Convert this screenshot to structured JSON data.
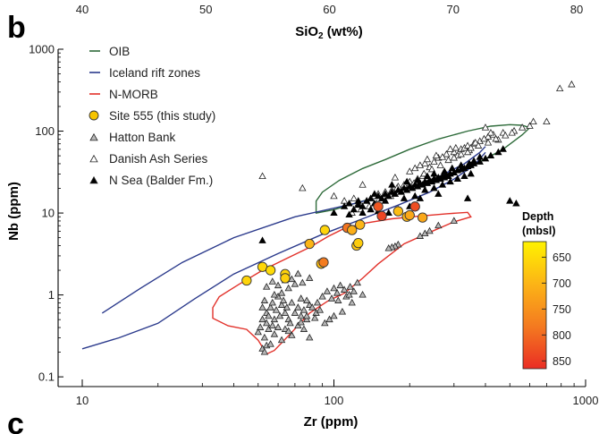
{
  "chart_data": {
    "type": "scatter",
    "panel_labels": {
      "top": "b",
      "bottom": "c"
    },
    "top_axis": {
      "label": "SiO2 (wt%)",
      "ticks": [
        40,
        50,
        60,
        70,
        80
      ],
      "range": [
        40,
        80
      ]
    },
    "x_axis": {
      "label": "Zr (ppm)",
      "scale": "log",
      "range": [
        10,
        1000
      ],
      "tick_values": [
        10,
        100,
        1000
      ],
      "tick_labels": [
        "10",
        "100",
        "1000"
      ]
    },
    "y_axis": {
      "label": "Nb (ppm)",
      "scale": "log",
      "range": [
        0.08,
        1000
      ],
      "tick_values": [
        0.1,
        1,
        10,
        100,
        1000
      ],
      "tick_labels": [
        "0.1",
        "1",
        "10",
        "100",
        "1000"
      ]
    },
    "legend": [
      {
        "key": "oib",
        "label": "OIB",
        "symbol": "line",
        "color": "#2e6b3a"
      },
      {
        "key": "iceland",
        "label": "Iceland rift zones",
        "symbol": "line",
        "color": "#2b3a8c"
      },
      {
        "key": "nmorb",
        "label": "N-MORB",
        "symbol": "line",
        "color": "#e2312a"
      },
      {
        "key": "site555",
        "label": "Site 555 (this study)",
        "symbol": "circle",
        "color": "#f6c400"
      },
      {
        "key": "hatton",
        "label": "Hatton Bank",
        "symbol": "triangle-grey",
        "color": "#b8b8b8"
      },
      {
        "key": "danish",
        "label": "Danish Ash Series",
        "symbol": "triangle-open",
        "color": "#ffffff"
      },
      {
        "key": "nsea",
        "label": "N Sea (Balder Fm.)",
        "symbol": "triangle-black",
        "color": "#000000"
      }
    ],
    "colorbar": {
      "title_line1": "Depth",
      "title_line2": "(mbsl)",
      "ticks": [
        650,
        700,
        750,
        800,
        850
      ],
      "range": [
        620,
        865
      ],
      "colors": [
        "#fff200",
        "#fcb416",
        "#f47a20",
        "#ea2d24"
      ]
    },
    "fields": {
      "oib": [
        [
          85,
          11
        ],
        [
          85,
          14
        ],
        [
          90,
          18
        ],
        [
          105,
          25
        ],
        [
          130,
          35
        ],
        [
          160,
          45
        ],
        [
          200,
          60
        ],
        [
          260,
          80
        ],
        [
          340,
          100
        ],
        [
          420,
          115
        ],
        [
          500,
          120
        ],
        [
          560,
          118
        ],
        [
          600,
          110
        ],
        [
          560,
          90
        ],
        [
          470,
          60
        ],
        [
          380,
          42
        ],
        [
          290,
          30
        ],
        [
          220,
          22
        ],
        [
          170,
          17
        ],
        [
          130,
          14
        ],
        [
          100,
          11
        ],
        [
          85,
          10
        ]
      ],
      "iceland_upper": [
        [
          12,
          0.6
        ],
        [
          17,
          1.2
        ],
        [
          25,
          2.5
        ],
        [
          40,
          5
        ],
        [
          70,
          9
        ],
        [
          120,
          13
        ],
        [
          180,
          18
        ],
        [
          250,
          26
        ],
        [
          330,
          40
        ],
        [
          380,
          55
        ],
        [
          400,
          65
        ]
      ],
      "iceland_lower": [
        [
          10,
          0.22
        ],
        [
          14,
          0.3
        ],
        [
          20,
          0.45
        ],
        [
          28,
          0.9
        ],
        [
          40,
          1.8
        ],
        [
          60,
          3.2
        ],
        [
          90,
          5.5
        ],
        [
          130,
          8.5
        ],
        [
          180,
          12.5
        ],
        [
          240,
          18
        ],
        [
          300,
          26
        ],
        [
          360,
          38
        ],
        [
          400,
          55
        ]
      ],
      "nmorb": [
        [
          33,
          0.7
        ],
        [
          35,
          0.95
        ],
        [
          42,
          1.35
        ],
        [
          52,
          2.0
        ],
        [
          65,
          2.8
        ],
        [
          80,
          3.8
        ],
        [
          95,
          5.2
        ],
        [
          110,
          6.5
        ],
        [
          135,
          7.6
        ],
        [
          170,
          8.5
        ],
        [
          220,
          9.2
        ],
        [
          280,
          9.8
        ],
        [
          340,
          10.2
        ],
        [
          350,
          9.0
        ],
        [
          300,
          7.8
        ],
        [
          240,
          5.8
        ],
        [
          190,
          4.2
        ],
        [
          150,
          2.4
        ],
        [
          130,
          1.6
        ],
        [
          110,
          1.05
        ],
        [
          95,
          0.85
        ],
        [
          80,
          0.6
        ],
        [
          68,
          0.35
        ],
        [
          58,
          0.21
        ],
        [
          54,
          0.19
        ],
        [
          50,
          0.28
        ],
        [
          45,
          0.38
        ],
        [
          38,
          0.42
        ],
        [
          33,
          0.52
        ],
        [
          33,
          0.7
        ]
      ]
    },
    "site555": [
      {
        "zr": 45,
        "nb": 1.5,
        "depth": 660
      },
      {
        "zr": 52,
        "nb": 2.2,
        "depth": 655
      },
      {
        "zr": 56,
        "nb": 2.0,
        "depth": 650
      },
      {
        "zr": 64,
        "nb": 1.8,
        "depth": 660
      },
      {
        "zr": 64,
        "nb": 1.6,
        "depth": 665
      },
      {
        "zr": 80,
        "nb": 4.2,
        "depth": 700
      },
      {
        "zr": 89,
        "nb": 2.4,
        "depth": 690
      },
      {
        "zr": 91,
        "nb": 2.5,
        "depth": 780
      },
      {
        "zr": 92,
        "nb": 6.2,
        "depth": 660
      },
      {
        "zr": 113,
        "nb": 6.6,
        "depth": 790
      },
      {
        "zr": 118,
        "nb": 6.2,
        "depth": 710
      },
      {
        "zr": 123,
        "nb": 4.0,
        "depth": 680
      },
      {
        "zr": 125,
        "nb": 4.3,
        "depth": 670
      },
      {
        "zr": 127,
        "nb": 7.2,
        "depth": 700
      },
      {
        "zr": 150,
        "nb": 12.0,
        "depth": 820
      },
      {
        "zr": 155,
        "nb": 9.2,
        "depth": 840
      },
      {
        "zr": 180,
        "nb": 10.5,
        "depth": 690
      },
      {
        "zr": 195,
        "nb": 9.0,
        "depth": 700
      },
      {
        "zr": 200,
        "nb": 9.4,
        "depth": 720
      },
      {
        "zr": 210,
        "nb": 12.0,
        "depth": 830
      },
      {
        "zr": 225,
        "nb": 8.8,
        "depth": 720
      }
    ],
    "hatton_bank": [
      [
        52,
        0.5
      ],
      [
        52,
        0.7
      ],
      [
        53,
        0.85
      ],
      [
        54,
        0.6
      ],
      [
        54,
        0.45
      ],
      [
        55,
        0.55
      ],
      [
        56,
        0.7
      ],
      [
        57,
        0.8
      ],
      [
        58,
        0.5
      ],
      [
        59,
        0.65
      ],
      [
        60,
        0.95
      ],
      [
        61,
        0.55
      ],
      [
        62,
        0.75
      ],
      [
        63,
        0.85
      ],
      [
        64,
        0.6
      ],
      [
        65,
        0.7
      ],
      [
        66,
        0.5
      ],
      [
        67,
        0.45
      ],
      [
        68,
        0.8
      ],
      [
        70,
        0.6
      ],
      [
        72,
        0.7
      ],
      [
        74,
        0.55
      ],
      [
        76,
        0.65
      ],
      [
        78,
        0.5
      ],
      [
        80,
        0.75
      ],
      [
        50,
        0.35
      ],
      [
        51,
        0.4
      ],
      [
        53,
        0.3
      ],
      [
        55,
        0.38
      ],
      [
        57,
        0.42
      ],
      [
        52,
        0.22
      ],
      [
        53,
        0.2
      ],
      [
        54,
        0.24
      ],
      [
        58,
        1.0
      ],
      [
        62,
        1.05
      ],
      [
        66,
        1.2
      ],
      [
        70,
        1.35
      ],
      [
        74,
        0.9
      ],
      [
        78,
        0.85
      ],
      [
        82,
        0.7
      ],
      [
        86,
        0.8
      ],
      [
        90,
        0.95
      ],
      [
        94,
        1.1
      ],
      [
        98,
        0.9
      ],
      [
        100,
        1.2
      ],
      [
        103,
        1.05
      ],
      [
        106,
        1.3
      ],
      [
        110,
        1.15
      ],
      [
        112,
        0.95
      ],
      [
        115,
        1.0
      ],
      [
        118,
        0.8
      ],
      [
        120,
        1.1
      ],
      [
        100,
        0.55
      ],
      [
        108,
        0.62
      ],
      [
        96,
        0.5
      ],
      [
        92,
        0.45
      ],
      [
        85,
        0.6
      ],
      [
        60,
        0.4
      ],
      [
        64,
        0.38
      ],
      [
        68,
        0.32
      ],
      [
        72,
        0.42
      ],
      [
        76,
        0.38
      ],
      [
        80,
        0.3
      ],
      [
        56,
        0.25
      ],
      [
        62,
        0.28
      ],
      [
        58,
        0.33
      ],
      [
        66,
        0.36
      ],
      [
        74,
        0.46
      ],
      [
        78,
        0.55
      ],
      [
        84,
        0.52
      ],
      [
        88,
        0.65
      ],
      [
        104,
        0.85
      ],
      [
        116,
        1.25
      ],
      [
        124,
        1.4
      ],
      [
        130,
        1.0
      ],
      [
        54,
        1.25
      ],
      [
        57,
        1.45
      ],
      [
        60,
        1.3
      ],
      [
        64,
        1.5
      ],
      [
        68,
        1.55
      ],
      [
        72,
        1.8
      ],
      [
        75,
        1.4
      ],
      [
        80,
        1.6
      ],
      [
        180,
        4.1
      ],
      [
        175,
        3.9
      ],
      [
        170,
        3.8
      ],
      [
        165,
        3.7
      ],
      [
        220,
        5.2
      ],
      [
        230,
        5.6
      ],
      [
        240,
        6.0
      ],
      [
        260,
        7.0
      ],
      [
        300,
        8.0
      ]
    ],
    "danish_ash": [
      [
        52,
        28
      ],
      [
        75,
        20
      ],
      [
        130,
        22
      ],
      [
        175,
        27
      ],
      [
        200,
        32
      ],
      [
        210,
        35
      ],
      [
        230,
        40
      ],
      [
        240,
        36
      ],
      [
        250,
        42
      ],
      [
        260,
        47
      ],
      [
        280,
        52
      ],
      [
        300,
        55
      ],
      [
        310,
        50
      ],
      [
        320,
        60
      ],
      [
        330,
        62
      ],
      [
        345,
        58
      ],
      [
        360,
        70
      ],
      [
        380,
        75
      ],
      [
        400,
        110
      ],
      [
        410,
        85
      ],
      [
        430,
        90
      ],
      [
        450,
        78
      ],
      [
        470,
        95
      ],
      [
        520,
        100
      ],
      [
        560,
        110
      ],
      [
        600,
        115
      ],
      [
        620,
        130
      ],
      [
        700,
        130
      ],
      [
        790,
        330
      ],
      [
        880,
        370
      ],
      [
        220,
        38
      ],
      [
        235,
        45
      ],
      [
        255,
        50
      ],
      [
        270,
        48
      ],
      [
        290,
        60
      ],
      [
        305,
        62
      ],
      [
        340,
        66
      ],
      [
        365,
        72
      ],
      [
        395,
        80
      ],
      [
        420,
        95
      ],
      [
        150,
        17
      ],
      [
        160,
        18
      ],
      [
        170,
        19
      ],
      [
        180,
        21
      ],
      [
        190,
        22
      ],
      [
        200,
        24
      ],
      [
        215,
        26
      ],
      [
        225,
        28
      ],
      [
        145,
        16
      ],
      [
        135,
        14
      ],
      [
        125,
        13
      ],
      [
        120,
        15
      ],
      [
        110,
        14
      ],
      [
        100,
        16
      ],
      [
        118,
        10
      ],
      [
        128,
        11
      ],
      [
        138,
        12
      ],
      [
        148,
        13
      ],
      [
        158,
        15
      ],
      [
        168,
        16
      ],
      [
        178,
        20
      ],
      [
        188,
        19
      ],
      [
        198,
        21
      ],
      [
        208,
        23
      ],
      [
        228,
        30
      ],
      [
        245,
        34
      ],
      [
        265,
        38
      ],
      [
        285,
        44
      ],
      [
        300,
        47
      ],
      [
        320,
        52
      ],
      [
        340,
        55
      ],
      [
        350,
        62
      ],
      [
        375,
        66
      ],
      [
        410,
        72
      ],
      [
        440,
        80
      ],
      [
        480,
        88
      ],
      [
        510,
        95
      ]
    ],
    "n_sea": [
      [
        52,
        4.6
      ],
      [
        100,
        10
      ],
      [
        110,
        12
      ],
      [
        115,
        13
      ],
      [
        120,
        11
      ],
      [
        125,
        14
      ],
      [
        130,
        12
      ],
      [
        135,
        14
      ],
      [
        140,
        15
      ],
      [
        145,
        13
      ],
      [
        150,
        16
      ],
      [
        155,
        15
      ],
      [
        160,
        17
      ],
      [
        165,
        16
      ],
      [
        170,
        18
      ],
      [
        175,
        17
      ],
      [
        180,
        19
      ],
      [
        185,
        18
      ],
      [
        190,
        20
      ],
      [
        195,
        19
      ],
      [
        200,
        21
      ],
      [
        205,
        20
      ],
      [
        210,
        22
      ],
      [
        215,
        21
      ],
      [
        220,
        23
      ],
      [
        225,
        22
      ],
      [
        230,
        24
      ],
      [
        235,
        23
      ],
      [
        240,
        25
      ],
      [
        245,
        24
      ],
      [
        250,
        26
      ],
      [
        255,
        25
      ],
      [
        260,
        27
      ],
      [
        265,
        26
      ],
      [
        270,
        28
      ],
      [
        275,
        27
      ],
      [
        280,
        29
      ],
      [
        285,
        28
      ],
      [
        290,
        30
      ],
      [
        300,
        31
      ],
      [
        310,
        33
      ],
      [
        320,
        34
      ],
      [
        330,
        35
      ],
      [
        340,
        37
      ],
      [
        350,
        38
      ],
      [
        360,
        40
      ],
      [
        380,
        42
      ],
      [
        400,
        46
      ],
      [
        420,
        50
      ],
      [
        450,
        55
      ],
      [
        470,
        60
      ],
      [
        500,
        14
      ],
      [
        530,
        13
      ],
      [
        340,
        15
      ],
      [
        260,
        17
      ],
      [
        220,
        15
      ],
      [
        200,
        12
      ],
      [
        180,
        11
      ],
      [
        165,
        10
      ],
      [
        150,
        10.5
      ],
      [
        160,
        14
      ],
      [
        140,
        11
      ],
      [
        130,
        10
      ],
      [
        115,
        9.5
      ],
      [
        125,
        12.5
      ],
      [
        145,
        17
      ],
      [
        170,
        22
      ],
      [
        195,
        24
      ],
      [
        215,
        25
      ],
      [
        235,
        28
      ],
      [
        250,
        30
      ],
      [
        275,
        32
      ],
      [
        295,
        35
      ],
      [
        320,
        38
      ],
      [
        345,
        40
      ],
      [
        360,
        43
      ],
      [
        380,
        48
      ],
      [
        190,
        15
      ],
      [
        210,
        16
      ],
      [
        230,
        19
      ],
      [
        250,
        20
      ],
      [
        270,
        22
      ],
      [
        290,
        24
      ],
      [
        310,
        26
      ],
      [
        330,
        28
      ],
      [
        350,
        30
      ]
    ]
  }
}
